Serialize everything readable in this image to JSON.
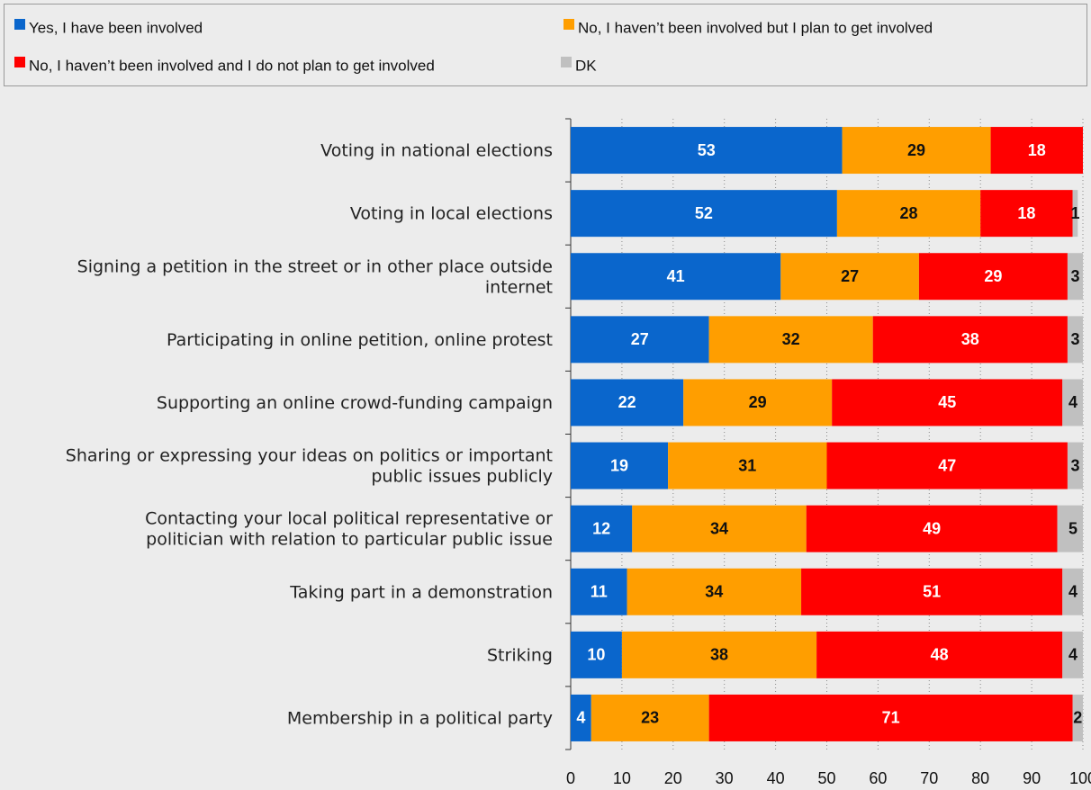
{
  "chart_data": {
    "type": "bar",
    "orientation": "horizontal",
    "stacked": true,
    "title": "",
    "xlabel": "",
    "ylabel": "",
    "xlim": [
      0,
      100
    ],
    "xticks": [
      0,
      10,
      20,
      30,
      40,
      50,
      60,
      70,
      80,
      90,
      100
    ],
    "grid": "vertical dotted",
    "legend_position": "top",
    "categories": [
      "Voting in national elections",
      "Voting in local elections",
      "Signing a petition in the street or in other place outside internet",
      "Participating in online petition, online protest",
      "Supporting an online crowd-funding campaign",
      "Sharing or expressing your ideas on politics or important public issues publicly",
      "Contacting your local political representative or politician with relation to particular public issue",
      "Taking part in a demonstration",
      "Striking",
      "Membership in a political party"
    ],
    "category_lines": [
      [
        "Voting in national elections"
      ],
      [
        "Voting in local elections"
      ],
      [
        "Signing a petition in the street or in other place outside",
        "internet"
      ],
      [
        "Participating in online petition, online protest"
      ],
      [
        "Supporting an online crowd-funding campaign"
      ],
      [
        "Sharing or expressing your ideas on politics or important",
        "public issues publicly"
      ],
      [
        "Contacting your local political representative or",
        "politician with relation to particular public issue"
      ],
      [
        "Taking part in a demonstration"
      ],
      [
        "Striking"
      ],
      [
        "Membership in a political party"
      ]
    ],
    "series": [
      {
        "name": "Yes, I have been involved",
        "color": "#0a66cc",
        "label_color": "#ffffff",
        "values": [
          53,
          52,
          41,
          27,
          22,
          19,
          12,
          11,
          10,
          4
        ]
      },
      {
        "name": "No, I haven’t been involved but I plan to get involved",
        "color": "#ff9e00",
        "label_color": "#111111",
        "values": [
          29,
          28,
          27,
          32,
          29,
          31,
          34,
          34,
          38,
          23
        ]
      },
      {
        "name": "No, I haven’t been involved and I do not plan to get involved",
        "color": "#ff0000",
        "label_color": "#ffffff",
        "values": [
          18,
          18,
          29,
          38,
          45,
          47,
          49,
          51,
          48,
          71
        ]
      },
      {
        "name": "DK",
        "color": "#c0c0c0",
        "label_color": "#111111",
        "values": [
          0,
          1,
          3,
          3,
          4,
          3,
          5,
          4,
          4,
          2
        ]
      }
    ]
  }
}
